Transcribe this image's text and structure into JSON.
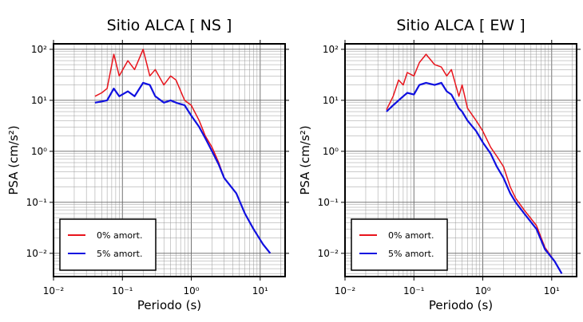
{
  "chart_data": [
    {
      "type": "line",
      "title": "Sitio ALCA [ NS ]",
      "xlabel": "Periodo (s)",
      "ylabel": "PSA (cm/s²)",
      "xscale": "log",
      "yscale": "log",
      "grid": true,
      "legend": "lower left",
      "xlim": [
        0.01,
        23
      ],
      "ylim": [
        0.0035,
        128
      ],
      "xticks": [
        {
          "value": 0.01,
          "label": "10⁻²"
        },
        {
          "value": 0.1,
          "label": "10⁻¹"
        },
        {
          "value": 1,
          "label": "10⁰"
        },
        {
          "value": 10,
          "label": "10¹"
        }
      ],
      "yticks": [
        {
          "value": 0.01,
          "label": "10⁻²"
        },
        {
          "value": 0.1,
          "label": "10⁻¹"
        },
        {
          "value": 1,
          "label": "10⁰"
        },
        {
          "value": 10,
          "label": "10¹"
        },
        {
          "value": 100,
          "label": "10²"
        }
      ],
      "x": [
        0.04,
        0.05,
        0.06,
        0.075,
        0.09,
        0.12,
        0.15,
        0.2,
        0.25,
        0.3,
        0.4,
        0.5,
        0.6,
        0.8,
        1,
        1.3,
        1.6,
        2,
        2.5,
        3,
        4.5,
        6,
        8,
        11,
        14
      ],
      "series": [
        {
          "name": "0% amort.",
          "color": "#e8141c",
          "values": [
            12,
            14,
            17,
            80,
            30,
            60,
            40,
            100,
            30,
            40,
            20,
            30,
            25,
            10,
            8,
            4,
            2,
            1.2,
            0.6,
            0.3,
            0.15,
            0.06,
            0.03,
            0.015,
            0.01
          ]
        },
        {
          "name": "5% amort.",
          "color": "#1010e0",
          "values": [
            9,
            9.5,
            10,
            17,
            12,
            15,
            12,
            22,
            20,
            12,
            9,
            10,
            9,
            8,
            5,
            3,
            1.8,
            1,
            0.55,
            0.3,
            0.15,
            0.06,
            0.03,
            0.015,
            0.01
          ]
        }
      ]
    },
    {
      "type": "line",
      "title": "Sitio ALCA [ EW ]",
      "xlabel": "Periodo (s)",
      "ylabel": "PSA (cm/s²)",
      "xscale": "log",
      "yscale": "log",
      "grid": true,
      "legend": "lower left",
      "xlim": [
        0.01,
        23
      ],
      "ylim": [
        0.0035,
        128
      ],
      "xticks": [
        {
          "value": 0.01,
          "label": "10⁻²"
        },
        {
          "value": 0.1,
          "label": "10⁻¹"
        },
        {
          "value": 1,
          "label": "10⁰"
        },
        {
          "value": 10,
          "label": "10¹"
        }
      ],
      "yticks": [
        {
          "value": 0.01,
          "label": "10⁻²"
        },
        {
          "value": 0.1,
          "label": "10⁻¹"
        },
        {
          "value": 1,
          "label": "10⁰"
        },
        {
          "value": 10,
          "label": "10¹"
        },
        {
          "value": 100,
          "label": "10²"
        }
      ],
      "x": [
        0.04,
        0.05,
        0.06,
        0.07,
        0.08,
        0.1,
        0.12,
        0.15,
        0.2,
        0.25,
        0.3,
        0.35,
        0.45,
        0.5,
        0.6,
        0.8,
        1,
        1.3,
        1.6,
        2,
        2.5,
        3,
        4,
        6,
        8,
        11,
        14
      ],
      "series": [
        {
          "name": "0% amort.",
          "color": "#e8141c",
          "values": [
            6.5,
            12,
            25,
            20,
            35,
            30,
            55,
            80,
            50,
            45,
            30,
            40,
            12,
            20,
            7,
            4,
            2.5,
            1.2,
            0.8,
            0.5,
            0.2,
            0.12,
            0.07,
            0.035,
            0.013,
            0.007,
            0.004
          ]
        },
        {
          "name": "5% amort.",
          "color": "#1010e0",
          "values": [
            6,
            8,
            10,
            12,
            14,
            13,
            20,
            22,
            20,
            22,
            15,
            13,
            7,
            6,
            4,
            2.5,
            1.5,
            0.9,
            0.5,
            0.3,
            0.15,
            0.1,
            0.06,
            0.03,
            0.012,
            0.007,
            0.004
          ]
        }
      ]
    }
  ]
}
